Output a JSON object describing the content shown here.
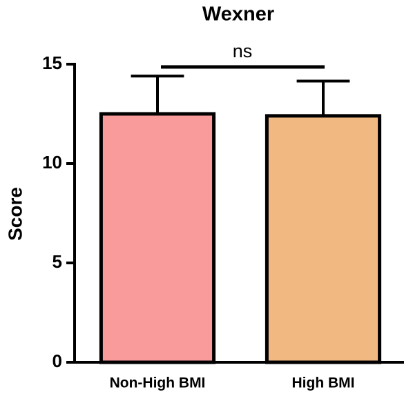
{
  "chart_data": {
    "type": "bar",
    "title": "Wexner",
    "y_label": "Score",
    "categories": [
      "Non-High BMI",
      "High BMI"
    ],
    "values": [
      12.5,
      12.4
    ],
    "errors": [
      1.9,
      1.75
    ],
    "colors": [
      "#f99b9b",
      "#f2b882"
    ],
    "annotation": "ns",
    "ylim": [
      0,
      15
    ],
    "yticks": [
      0,
      5,
      10,
      15
    ],
    "grid": false
  }
}
